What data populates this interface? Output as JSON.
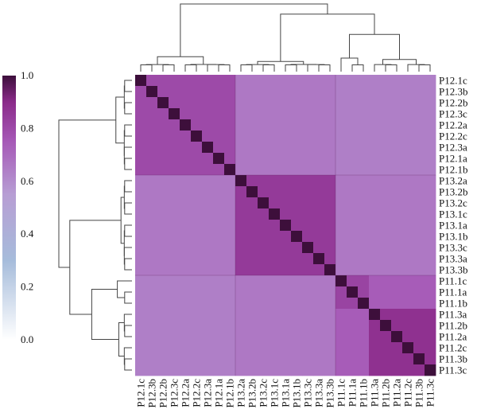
{
  "chart_data": {
    "type": "heatmap",
    "title": "",
    "xlabel": "",
    "ylabel": "",
    "labels": [
      "P12.1c",
      "P12.3b",
      "P12.2b",
      "P12.3c",
      "P12.2a",
      "P12.2c",
      "P12.3a",
      "P12.1a",
      "P12.1b",
      "P13.2a",
      "P13.2b",
      "P13.2c",
      "P13.1c",
      "P13.1a",
      "P13.1b",
      "P13.3c",
      "P13.3a",
      "P13.3b",
      "P11.1c",
      "P11.1a",
      "P11.1b",
      "P11.3a",
      "P11.2b",
      "P11.2a",
      "P11.2c",
      "P11.3b",
      "P11.3c"
    ],
    "colorbar": {
      "range": [
        0.0,
        1.0
      ],
      "ticks": [
        0.0,
        0.2,
        0.4,
        0.6,
        0.8,
        1.0
      ],
      "tick_labels": [
        "0.0",
        "0.2",
        "0.4",
        "0.6",
        "0.8",
        "1.0"
      ],
      "colors": [
        "#ffffff",
        "#a6bcdb",
        "#b79ed4",
        "#a659b7",
        "#8b2b8a",
        "#3d0f3b"
      ]
    },
    "diagonal_value": 1.0,
    "groups": [
      {
        "members": [
          0,
          8
        ],
        "within": 0.8
      },
      {
        "members": [
          9,
          17
        ],
        "within": 0.85
      },
      {
        "members": [
          18,
          20
        ],
        "within": 0.82
      },
      {
        "members": [
          21,
          26
        ],
        "within": 0.88
      }
    ],
    "between_groups": [
      [
        null,
        0.66,
        0.64,
        0.64
      ],
      [
        0.66,
        null,
        0.66,
        0.66
      ],
      [
        0.64,
        0.66,
        null,
        0.74
      ],
      [
        0.64,
        0.66,
        0.74,
        null
      ]
    ],
    "dendrogram": "hierarchical clustering tree shown on top and left, grouping P12, P13, P11 samples"
  }
}
